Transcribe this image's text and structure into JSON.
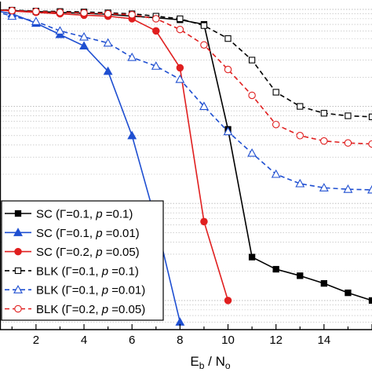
{
  "chart_data": {
    "type": "line",
    "xlabel": "E_b / N_o",
    "xlabel_main": "E",
    "xlabel_sub": "b",
    "xlabel_sep": " / N",
    "xlabel_sub2": "o",
    "xlim": [
      0.5,
      16.0
    ],
    "ylim_log10": [
      -3.3,
      0.08
    ],
    "y_scale": "log",
    "grid": "horizontal dotted, log minor",
    "x_ticks": [
      2,
      4,
      6,
      8,
      10,
      12,
      14
    ],
    "x_tick_labels": [
      "2",
      "4",
      "6",
      "8",
      "10",
      "12",
      "14"
    ],
    "legend_position": "bottom-left",
    "series": [
      {
        "name": "SC (Γ=0.1, p =0.1)",
        "legend_parts": [
          "SC (Γ=0.1, ",
          "p",
          " =0.1)"
        ],
        "color": "#000000",
        "dash": "solid",
        "marker": "square",
        "filled": true,
        "x": [
          0,
          1,
          2,
          3,
          4,
          5,
          6,
          7,
          8,
          9,
          10,
          11,
          12,
          13,
          14,
          15,
          16
        ],
        "y": [
          1,
          0.97,
          0.95,
          0.93,
          0.91,
          0.89,
          0.85,
          0.82,
          0.78,
          0.7,
          0.058,
          0.0028,
          0.0021,
          0.0018,
          0.0015,
          0.0012,
          0.001
        ]
      },
      {
        "name": "SC (Γ=0.1, p =0.01)",
        "legend_parts": [
          "SC (Γ=0.1, ",
          "p",
          " =0.01)"
        ],
        "color": "#1f4fd1",
        "dash": "solid",
        "marker": "triangle",
        "filled": true,
        "x": [
          0,
          1,
          2,
          3,
          4,
          5,
          6,
          7,
          8
        ],
        "y": [
          1,
          0.9,
          0.72,
          0.55,
          0.42,
          0.23,
          0.05,
          0.0065,
          0.0006
        ]
      },
      {
        "name": "SC (Γ=0.2, p =0.05)",
        "legend_parts": [
          "SC (Γ=0.2, ",
          "p",
          " =0.05)"
        ],
        "color": "#e01f1f",
        "dash": "solid",
        "marker": "circle",
        "filled": true,
        "x": [
          0,
          1,
          2,
          3,
          4,
          5,
          6,
          7,
          8,
          9,
          10
        ],
        "y": [
          1,
          0.96,
          0.93,
          0.9,
          0.87,
          0.85,
          0.8,
          0.6,
          0.25,
          0.0065,
          0.001
        ]
      },
      {
        "name": "BLK (Γ=0.1, p =0.1)",
        "legend_parts": [
          "BLK (Γ=0.1, ",
          "p",
          " =0.1)"
        ],
        "color": "#000000",
        "dash": "dashed",
        "marker": "square",
        "filled": false,
        "x": [
          0,
          1,
          2,
          3,
          4,
          5,
          6,
          7,
          8,
          9,
          10,
          11,
          12,
          13,
          14,
          15,
          16
        ],
        "y": [
          1,
          0.98,
          0.96,
          0.95,
          0.94,
          0.92,
          0.9,
          0.85,
          0.8,
          0.68,
          0.5,
          0.3,
          0.14,
          0.1,
          0.085,
          0.08,
          0.078
        ]
      },
      {
        "name": "BLK (Γ=0.1, p =0.01)",
        "legend_parts": [
          "BLK (Γ=0.1, ",
          "p",
          " =0.01)"
        ],
        "color": "#1f4fd1",
        "dash": "dashed",
        "marker": "triangle",
        "filled": false,
        "x": [
          0,
          1,
          2,
          3,
          4,
          5,
          6,
          7,
          8,
          9,
          10,
          11,
          12,
          13,
          14,
          15,
          16
        ],
        "y": [
          1,
          0.85,
          0.75,
          0.6,
          0.52,
          0.45,
          0.32,
          0.26,
          0.19,
          0.1,
          0.055,
          0.033,
          0.02,
          0.016,
          0.0145,
          0.014,
          0.0138
        ]
      },
      {
        "name": "BLK (Γ=0.2, p =0.05)",
        "legend_parts": [
          "BLK (Γ=0.2, ",
          "p",
          " =0.05)"
        ],
        "color": "#e01f1f",
        "dash": "dashed",
        "marker": "circle",
        "filled": false,
        "x": [
          0,
          1,
          2,
          3,
          4,
          5,
          6,
          7,
          8,
          9,
          10,
          11,
          12,
          13,
          14,
          15,
          16
        ],
        "y": [
          1,
          0.97,
          0.95,
          0.93,
          0.92,
          0.9,
          0.88,
          0.8,
          0.62,
          0.43,
          0.24,
          0.13,
          0.065,
          0.05,
          0.044,
          0.042,
          0.041
        ]
      }
    ]
  }
}
